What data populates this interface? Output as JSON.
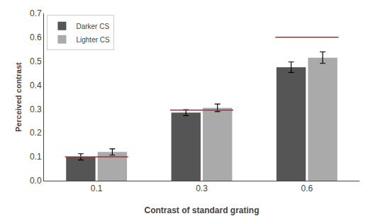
{
  "chart_data": {
    "type": "bar",
    "categories": [
      "0.1",
      "0.3",
      "0.6"
    ],
    "series": [
      {
        "name": "Darker CS",
        "color": "#555555",
        "values": [
          0.1,
          0.285,
          0.475
        ],
        "errors": [
          0.013,
          0.012,
          0.022
        ]
      },
      {
        "name": "Lighter CS",
        "color": "#aaaaaa",
        "values": [
          0.12,
          0.305,
          0.515
        ],
        "errors": [
          0.013,
          0.016,
          0.024
        ]
      },
      {
        "type": "line",
        "color": "#8b3a3a",
        "values": [
          0.1,
          0.295,
          0.6
        ]
      }
    ],
    "xlabel": "Contrast of standard grating",
    "ylabel": "Perceived contrast",
    "ylim": [
      0,
      0.7
    ],
    "yticks": [
      {
        "value": 0,
        "label": "0.0"
      },
      0.1,
      0.2,
      0.3,
      0.4,
      0.5,
      0.6,
      0.7
    ],
    "grid": false,
    "legend": "upper left"
  }
}
